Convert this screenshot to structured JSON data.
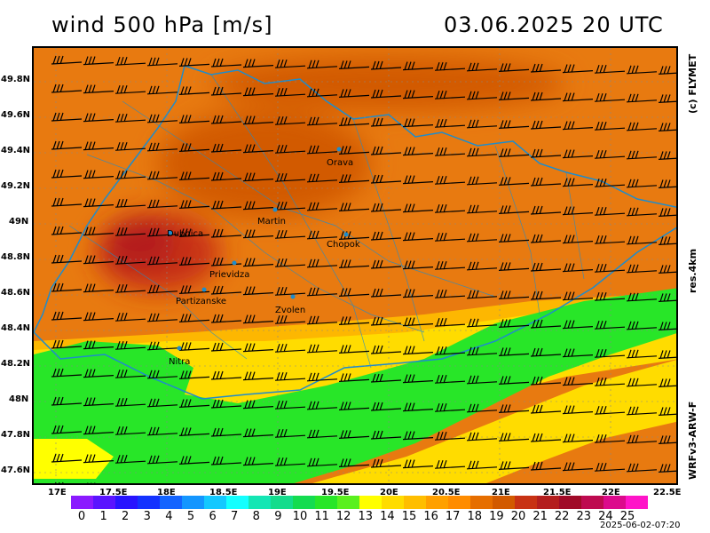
{
  "header": {
    "title_left": "wind 500 hPa [m/s]",
    "title_right": "03.06.2025   20 UTC"
  },
  "side_labels": {
    "copyright": "(c) FLYMET",
    "resolution": "res.4km",
    "model": "WRFv3-ARW-F"
  },
  "footer": {
    "timestamp": "2025-06-02-07:20"
  },
  "axes": {
    "lat_labels": [
      "49.8N",
      "49.6N",
      "49.4N",
      "49.2N",
      "49N",
      "48.8N",
      "48.6N",
      "48.4N",
      "48.2N",
      "48N",
      "47.8N",
      "47.6N"
    ],
    "lon_labels": [
      "17E",
      "17.5E",
      "18E",
      "18.5E",
      "19E",
      "19.5E",
      "20E",
      "20.5E",
      "21E",
      "21.5E",
      "22E",
      "22.5E"
    ]
  },
  "cities": [
    "Orava",
    "Martin",
    "Dubnica",
    "Chopok",
    "Prievidza",
    "Partizanske",
    "Zvolen",
    "Nitra"
  ],
  "colorbar": {
    "labels": [
      "0",
      "1",
      "2",
      "3",
      "4",
      "5",
      "6",
      "7",
      "8",
      "9",
      "10",
      "11",
      "12",
      "13",
      "14",
      "15",
      "16",
      "17",
      "18",
      "19",
      "20",
      "21",
      "22",
      "23",
      "24",
      "25"
    ],
    "colors": [
      "#8b1aff",
      "#5a14ff",
      "#2814ff",
      "#1432ff",
      "#1464ff",
      "#1496ff",
      "#14c8ff",
      "#14ffff",
      "#14e6b4",
      "#14dc8c",
      "#14dc50",
      "#28e628",
      "#5af01e",
      "#ffff00",
      "#ffdc00",
      "#ffbe00",
      "#ffa000",
      "#ff8c00",
      "#e66e00",
      "#d25a00",
      "#c83214",
      "#b41e1e",
      "#a00a28",
      "#be0a50",
      "#dc0a8c",
      "#ff14c8"
    ]
  },
  "colors": {
    "map_background": "#e87a10",
    "border_line": "#1e8ccc"
  },
  "chart_data": {
    "type": "heatmap",
    "variable": "wind 500 hPa [m/s]",
    "lon_range": [
      "17E",
      "22.5E"
    ],
    "lat_range": [
      "47.5N",
      "50N"
    ]
  }
}
